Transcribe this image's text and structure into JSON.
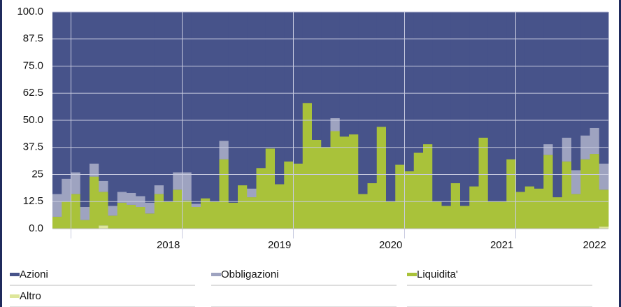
{
  "chart_data": {
    "type": "stacked-bar",
    "categories": [
      null,
      null,
      null,
      null,
      null,
      null,
      null,
      null,
      null,
      null,
      null,
      null,
      "2018",
      null,
      null,
      null,
      null,
      null,
      null,
      null,
      null,
      null,
      null,
      null,
      "2019",
      null,
      null,
      null,
      null,
      null,
      null,
      null,
      null,
      null,
      null,
      null,
      "2020",
      null,
      null,
      null,
      null,
      null,
      null,
      null,
      null,
      null,
      null,
      null,
      "2021",
      null,
      null,
      null,
      null,
      null,
      null,
      null,
      null,
      null,
      "2022",
      null
    ],
    "series": [
      {
        "name": "Azioni",
        "color": "#47538a",
        "values": [
          84,
          77,
          74,
          90,
          70,
          78,
          89.5,
          83,
          83.5,
          85,
          88,
          80,
          87.5,
          74,
          74,
          88.5,
          86,
          87.5,
          59.5,
          88,
          80,
          81.5,
          72,
          63,
          79.5,
          69,
          70,
          42,
          59,
          62.5,
          49,
          57.5,
          56.5,
          84,
          79,
          53,
          87.5,
          70.5,
          73.5,
          65,
          61,
          87.5,
          89.5,
          79,
          89.5,
          80.5,
          58,
          87.5,
          87.5,
          68,
          83,
          80.5,
          81.5,
          61,
          85.5,
          58,
          73,
          57,
          53.5,
          70
        ]
      },
      {
        "name": "Obbligazioni",
        "color": "#9ea3c0",
        "values": [
          10.5,
          10.5,
          10,
          6,
          6,
          5,
          4.5,
          5,
          5.5,
          5,
          5,
          4,
          0,
          8,
          13,
          1.5,
          0,
          0,
          8.5,
          0,
          0,
          4,
          0,
          0,
          0,
          0,
          0,
          0,
          0,
          0,
          6,
          0,
          0,
          0,
          0,
          0,
          0,
          0,
          0,
          0,
          0,
          0,
          0,
          0,
          0,
          0,
          0,
          0,
          0,
          0,
          0,
          0,
          0,
          5,
          0,
          11,
          11,
          11,
          12,
          12
        ]
      },
      {
        "name": "Liquidita'",
        "color": "#a9c23a",
        "values": [
          5.5,
          12.5,
          16,
          4,
          24,
          15.5,
          6,
          12,
          11,
          10,
          7,
          16,
          12.5,
          18,
          13,
          10,
          14,
          12.5,
          32,
          12,
          20,
          14.5,
          28,
          37,
          20.5,
          31,
          30,
          58,
          41,
          37.5,
          45,
          42.5,
          43.5,
          16,
          21,
          47,
          12.5,
          29.5,
          26.5,
          35,
          39,
          12.5,
          10.5,
          21,
          10.5,
          19.5,
          42,
          12.5,
          12.5,
          32,
          17,
          19.5,
          18.5,
          34,
          14.5,
          31,
          16,
          32,
          34.5,
          17
        ]
      },
      {
        "name": "Altro",
        "color": "#dde69a",
        "values": [
          0,
          0,
          0,
          0,
          0,
          1.5,
          0,
          0,
          0,
          0,
          0,
          0,
          0,
          0,
          0,
          0,
          0,
          0,
          0,
          0,
          0,
          0,
          0,
          0,
          0,
          0,
          0,
          0,
          0,
          0,
          0,
          0,
          0,
          0,
          0,
          0,
          0,
          0,
          0,
          0,
          0,
          0,
          0,
          0,
          0,
          0,
          0,
          0,
          0,
          0,
          0,
          0,
          0,
          0,
          0,
          0,
          0,
          0,
          0,
          1
        ]
      }
    ],
    "ylim": [
      0,
      100
    ],
    "yticks": [
      {
        "value": 0,
        "label": "0.0"
      },
      12.5,
      25,
      {
        "value": 37.5,
        "label": "37.5"
      },
      {
        "value": 50,
        "label": "50.0"
      },
      62.5,
      {
        "value": 75,
        "label": "75.0"
      },
      87.5,
      {
        "value": 100,
        "label": "100.0"
      }
    ],
    "grid": true,
    "legend": "bottom"
  }
}
